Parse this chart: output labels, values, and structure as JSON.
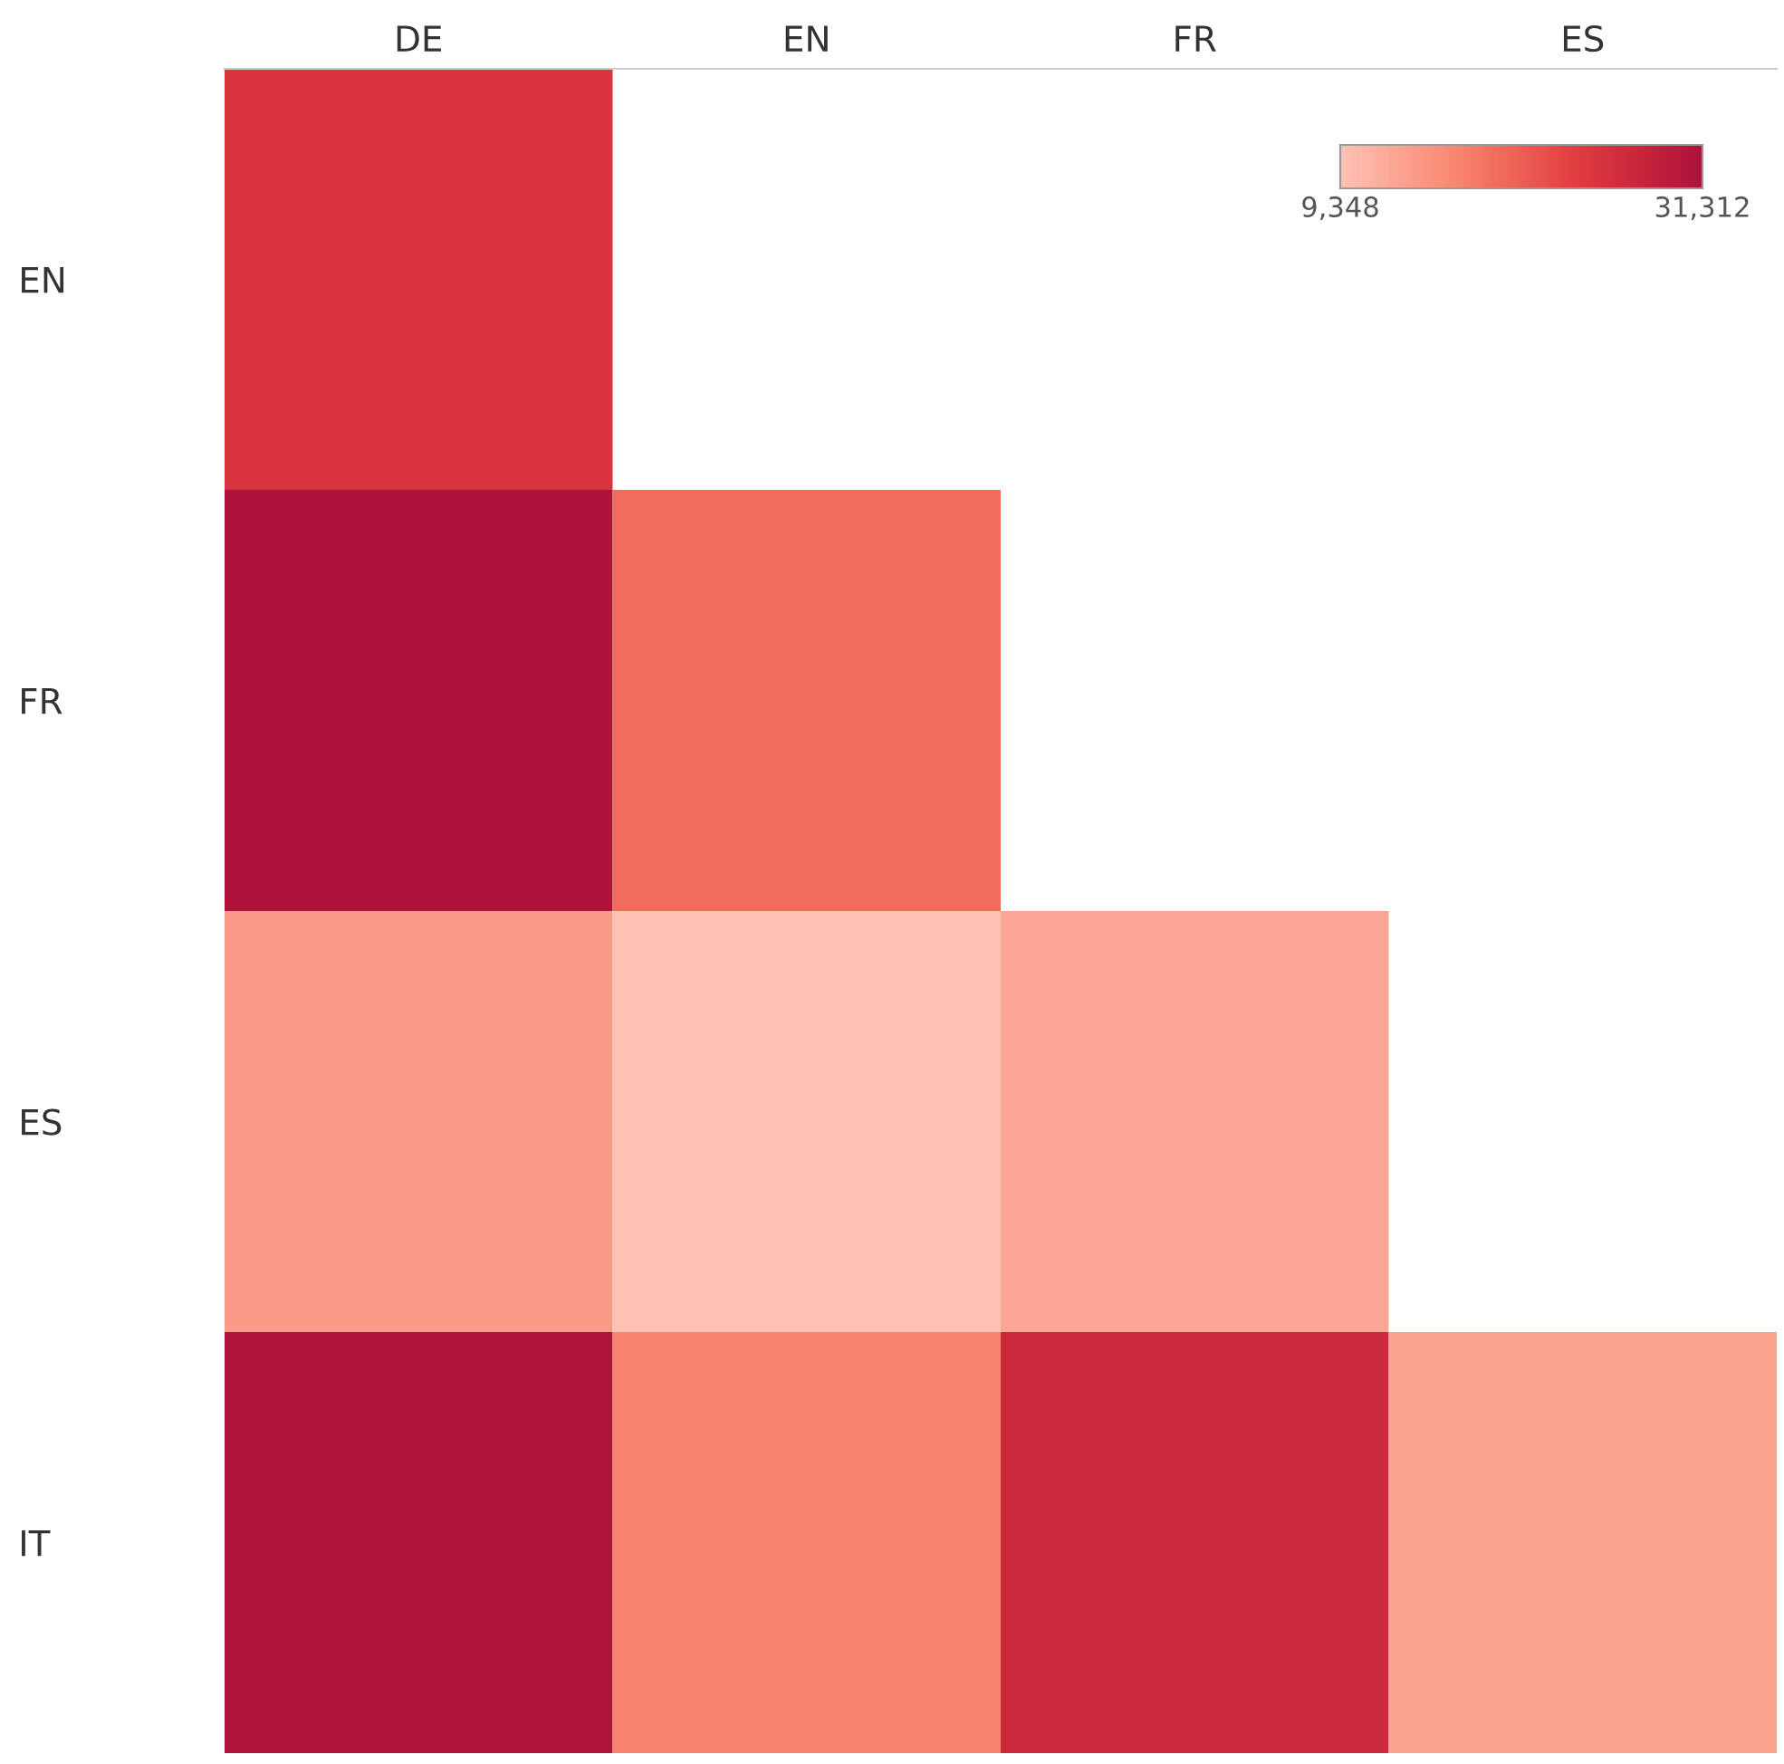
{
  "chart_data": {
    "type": "heatmap",
    "categories": [
      "DE",
      "EN",
      "FR",
      "ES"
    ],
    "y_categories": [
      "EN",
      "FR",
      "ES",
      "IT"
    ],
    "cells": [
      [
        25000,
        null,
        null,
        null
      ],
      [
        31300,
        19000,
        null,
        null
      ],
      [
        14000,
        9348,
        12500,
        null
      ],
      [
        31000,
        16500,
        27000,
        13000
      ]
    ],
    "clim": [
      9348,
      31312
    ],
    "cticks": [
      {
        "value": 9348,
        "label": "9,348"
      },
      {
        "value": 31312,
        "label": "31,312"
      }
    ]
  }
}
